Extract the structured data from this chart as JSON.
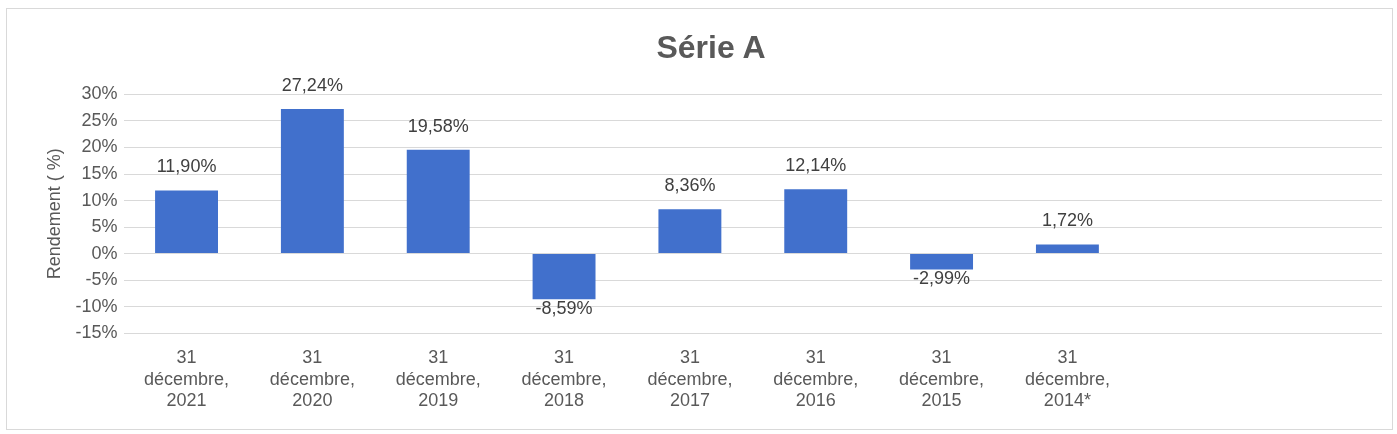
{
  "chart_data": {
    "type": "bar",
    "title": "Série A",
    "ylabel": "Rendement ( %)",
    "categories": [
      "31 décembre, 2021",
      "31 décembre, 2020",
      "31 décembre, 2019",
      "31 décembre, 2018",
      "31 décembre, 2017",
      "31 décembre, 2016",
      "31 décembre, 2015",
      "31 décembre, 2014*",
      null,
      null
    ],
    "values": [
      11.9,
      27.24,
      19.58,
      -8.59,
      8.36,
      12.14,
      -2.99,
      1.72,
      null,
      null
    ],
    "value_labels": [
      "11,90%",
      "27,24%",
      "19,58%",
      "-8,59%",
      "8,36%",
      "12,14%",
      "-2,99%",
      "1,72%",
      null,
      null
    ],
    "color": "#4170cc",
    "ylim": [
      -15,
      30
    ],
    "yticks": [
      {
        "value": -15,
        "label": "-15%"
      },
      {
        "value": -10,
        "label": "-10%"
      },
      {
        "value": -5,
        "label": "-5%"
      },
      {
        "value": 0,
        "label": "0%"
      },
      {
        "value": 5,
        "label": "5%"
      },
      {
        "value": 10,
        "label": "10%"
      },
      {
        "value": 15,
        "label": "15%"
      },
      {
        "value": 20,
        "label": "20%"
      },
      {
        "value": 25,
        "label": "25%"
      },
      {
        "value": 30,
        "label": "30%"
      }
    ],
    "grid": "y"
  }
}
